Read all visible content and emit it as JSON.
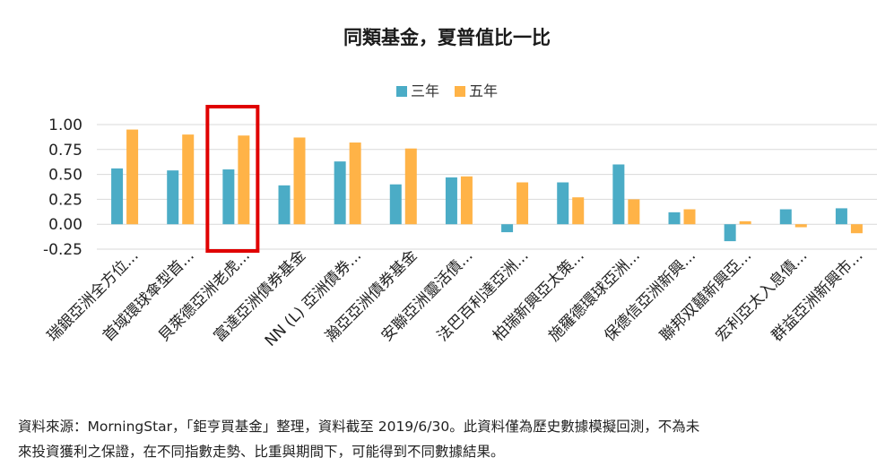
{
  "chart_data": {
    "type": "bar",
    "title": "同類基金，夏普值比一比",
    "categories": [
      "瑞銀亞洲全方位...",
      "首域環球傘型首...",
      "貝萊德亞洲老虎...",
      "富達亞洲債券基金",
      "NN (L) 亞洲債券...",
      "瀚亞亞洲債券基金",
      "安聯亞洲靈活債...",
      "法巴百利達亞洲...",
      "柏瑞新興亞太策...",
      "施羅德環球亞洲...",
      "保德信亞洲新興...",
      "聯邦双囍新興亞...",
      "宏利亞太入息債...",
      "群益亞洲新興市..."
    ],
    "series": [
      {
        "name": "三年",
        "color": "#4bacc6",
        "values": [
          0.56,
          0.54,
          0.55,
          0.39,
          0.63,
          0.4,
          0.47,
          -0.08,
          0.42,
          0.6,
          0.12,
          -0.17,
          0.15,
          0.16
        ]
      },
      {
        "name": "五年",
        "color": "#ffb347",
        "values": [
          0.95,
          0.9,
          0.89,
          0.87,
          0.82,
          0.76,
          0.48,
          0.42,
          0.27,
          0.25,
          0.15,
          0.03,
          -0.03,
          -0.09
        ]
      }
    ],
    "yticks": [
      "1.00",
      "0.75",
      "0.50",
      "0.25",
      "0.00",
      "-0.25"
    ],
    "ylim": [
      -0.25,
      1.0
    ],
    "grid": true,
    "legend": "top-center",
    "highlight_index": 2,
    "highlight_color": "#e00000"
  },
  "source_note": "資料來源：MorningStar，「鉅亨買基金」整理，資料截至 2019/6/30。此資料僅為歷史數據模擬回測，不為未\n來投資獲利之保證，在不同指數走勢、比重與期間下，可能得到不同數據結果。"
}
